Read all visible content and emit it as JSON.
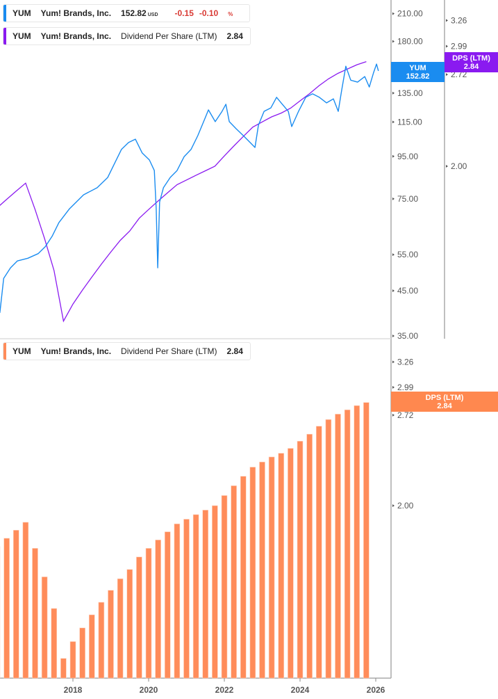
{
  "legend_price": {
    "ticker": "YUM",
    "company": "Yum! Brands, Inc.",
    "price": "152.82",
    "currency": "USD",
    "change": "-0.15",
    "change_pct": "-0.10",
    "pct_sign": "%"
  },
  "legend_dps_top": {
    "ticker": "YUM",
    "company": "Yum! Brands, Inc.",
    "metric": "Dividend Per Share (LTM)",
    "value": "2.84"
  },
  "legend_dps_bottom": {
    "ticker": "YUM",
    "company": "Yum! Brands, Inc.",
    "metric": "Dividend Per Share (LTM)",
    "value": "2.84"
  },
  "tags": {
    "price": {
      "label": "YUM",
      "value": "152.82"
    },
    "dps_top": {
      "label": "DPS (LTM)",
      "value": "2.84"
    },
    "dps_bottom": {
      "label": "DPS (LTM)",
      "value": "2.84"
    }
  },
  "colors": {
    "price": "#1a8cf0",
    "dps_line": "#8a1af0",
    "dps_bar": "#ff8c5a",
    "negative": "#d93a34"
  },
  "chart_data": [
    {
      "type": "line",
      "scale": "log",
      "series": [
        {
          "name": "YUM",
          "x": [
            2016.07,
            2016.17,
            2016.35,
            2016.53,
            2016.81,
            2017.08,
            2017.27,
            2017.45,
            2017.63,
            2017.91,
            2018.28,
            2018.64,
            2018.92,
            2019.1,
            2019.28,
            2019.47,
            2019.65,
            2019.83,
            2020.02,
            2020.15,
            2020.2,
            2020.24,
            2020.29,
            2020.39,
            2020.57,
            2020.75,
            2020.94,
            2021.12,
            2021.3,
            2021.49,
            2021.58,
            2021.76,
            2021.94,
            2022.04,
            2022.13,
            2022.31,
            2022.5,
            2022.68,
            2022.81,
            2022.9,
            2023.05,
            2023.23,
            2023.38,
            2023.5,
            2023.69,
            2023.78,
            2023.96,
            2024.15,
            2024.33,
            2024.51,
            2024.7,
            2024.88,
            2025.01,
            2025.1,
            2025.21,
            2025.34,
            2025.52,
            2025.71,
            2025.83,
            2025.94,
            2026.02,
            2026.07
          ],
          "y": [
            39.8,
            48.2,
            51.1,
            53.1,
            53.9,
            55.3,
            57.5,
            60.9,
            65.7,
            71.0,
            76.7,
            79.8,
            84.5,
            91.3,
            98.7,
            102.6,
            104.5,
            96.8,
            93.1,
            87.8,
            71.0,
            51.1,
            73.7,
            79.8,
            84.5,
            87.8,
            94.9,
            98.7,
            106.6,
            117.4,
            123.0,
            115.2,
            122.0,
            126.9,
            115.2,
            110.8,
            106.6,
            102.6,
            99.8,
            113.0,
            122.0,
            124.4,
            131.9,
            127.9,
            122.0,
            112.1,
            122.0,
            131.9,
            134.5,
            131.9,
            127.9,
            130.8,
            122.0,
            137.1,
            156.8,
            145.1,
            143.5,
            148.0,
            139.7,
            151.0,
            158.7,
            152.8
          ]
        }
      ],
      "y_ticks": [
        "210.00",
        "180.00",
        "135.00",
        "115.00",
        "95.00",
        "75.00",
        "55.00",
        "45.00",
        "35.00"
      ],
      "y2_ticks": [
        "3.26",
        "2.99",
        "2.72",
        "2.00"
      ],
      "ylim": [
        35,
        210
      ],
      "y2lim": [
        1.113,
        3.5
      ]
    },
    {
      "type": "bar",
      "scale": "log",
      "x": [
        2016.0,
        2016.25,
        2016.5,
        2016.75,
        2017.0,
        2017.25,
        2017.5,
        2017.75,
        2018.0,
        2018.25,
        2018.5,
        2018.75,
        2019.0,
        2019.25,
        2019.5,
        2019.75,
        2020.0,
        2020.25,
        2020.5,
        2020.75,
        2021.0,
        2021.25,
        2021.5,
        2021.75,
        2022.0,
        2022.25,
        2022.5,
        2022.75,
        2023.0,
        2023.25,
        2023.5,
        2023.75,
        2024.0,
        2024.25,
        2024.5,
        2024.75,
        2025.0,
        2025.25,
        2025.5,
        2025.75
      ],
      "values": [
        1.74,
        1.79,
        1.84,
        1.89,
        1.73,
        1.57,
        1.41,
        1.19,
        1.26,
        1.32,
        1.38,
        1.44,
        1.5,
        1.56,
        1.61,
        1.68,
        1.73,
        1.78,
        1.83,
        1.88,
        1.91,
        1.94,
        1.97,
        2.0,
        2.07,
        2.14,
        2.21,
        2.28,
        2.32,
        2.36,
        2.39,
        2.43,
        2.49,
        2.55,
        2.62,
        2.68,
        2.73,
        2.77,
        2.81,
        2.84
      ],
      "y_ticks": [
        "3.26",
        "2.99",
        "2.72",
        "2.00"
      ],
      "x_ticks": [
        "2018",
        "2020",
        "2022",
        "2024",
        "2026"
      ],
      "ylim": [
        1.113,
        3.5
      ]
    }
  ]
}
